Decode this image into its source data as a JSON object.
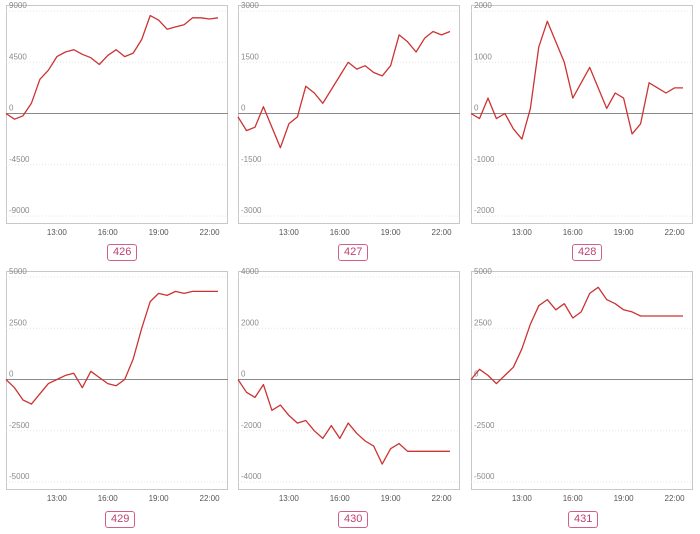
{
  "chart_data": [
    {
      "type": "line",
      "label": "426",
      "x": [
        "10:00",
        "10:30",
        "11:00",
        "11:30",
        "12:00",
        "12:30",
        "13:00",
        "13:30",
        "14:00",
        "14:30",
        "15:00",
        "15:30",
        "16:00",
        "16:30",
        "17:00",
        "17:30",
        "18:00",
        "18:30",
        "19:00",
        "19:30",
        "20:00",
        "20:30",
        "21:00",
        "21:30",
        "22:00",
        "22:30"
      ],
      "x_ticks": [
        "13:00",
        "16:00",
        "19:00",
        "22:00"
      ],
      "y_ticks": [
        "9000",
        "4500",
        "0",
        "-4500",
        "-9000"
      ],
      "ylim": [
        -9000,
        9000
      ],
      "values": [
        0,
        -500,
        -200,
        900,
        3000,
        3800,
        5000,
        5400,
        5600,
        5200,
        4900,
        4300,
        5100,
        5600,
        5000,
        5300,
        6500,
        8600,
        8200,
        7400,
        7600,
        7800,
        8400,
        8400,
        8300,
        8400
      ],
      "color": "#cc3333"
    },
    {
      "type": "line",
      "label": "427",
      "x": [
        "10:00",
        "10:30",
        "11:00",
        "11:30",
        "12:00",
        "12:30",
        "13:00",
        "13:30",
        "14:00",
        "14:30",
        "15:00",
        "15:30",
        "16:00",
        "16:30",
        "17:00",
        "17:30",
        "18:00",
        "18:30",
        "19:00",
        "19:30",
        "20:00",
        "20:30",
        "21:00",
        "21:30",
        "22:00",
        "22:30"
      ],
      "x_ticks": [
        "13:00",
        "16:00",
        "19:00",
        "22:00"
      ],
      "y_ticks": [
        "3000",
        "1500",
        "0",
        "-1500",
        "-3000"
      ],
      "ylim": [
        -3000,
        3000
      ],
      "values": [
        -100,
        -500,
        -400,
        200,
        -400,
        -1000,
        -300,
        -100,
        800,
        600,
        300,
        700,
        1100,
        1500,
        1300,
        1400,
        1200,
        1100,
        1400,
        2300,
        2100,
        1800,
        2200,
        2400,
        2300,
        2400
      ],
      "color": "#cc3333"
    },
    {
      "type": "line",
      "label": "428",
      "x": [
        "10:00",
        "10:30",
        "11:00",
        "11:30",
        "12:00",
        "12:30",
        "13:00",
        "13:30",
        "14:00",
        "14:30",
        "15:00",
        "15:30",
        "16:00",
        "16:30",
        "17:00",
        "17:30",
        "18:00",
        "18:30",
        "19:00",
        "19:30",
        "20:00",
        "20:30",
        "21:00",
        "21:30",
        "22:00",
        "22:30"
      ],
      "x_ticks": [
        "13:00",
        "16:00",
        "19:00",
        "22:00"
      ],
      "y_ticks": [
        "2000",
        "1000",
        "0",
        "-1000",
        "-2000"
      ],
      "ylim": [
        -2000,
        2000
      ],
      "values": [
        0,
        -100,
        300,
        -100,
        0,
        -300,
        -500,
        100,
        1300,
        1800,
        1400,
        1000,
        300,
        600,
        900,
        500,
        100,
        400,
        300,
        -400,
        -200,
        600,
        500,
        400,
        500,
        500
      ],
      "color": "#cc3333"
    },
    {
      "type": "line",
      "label": "429",
      "x": [
        "10:00",
        "10:30",
        "11:00",
        "11:30",
        "12:00",
        "12:30",
        "13:00",
        "13:30",
        "14:00",
        "14:30",
        "15:00",
        "15:30",
        "16:00",
        "16:30",
        "17:00",
        "17:30",
        "18:00",
        "18:30",
        "19:00",
        "19:30",
        "20:00",
        "20:30",
        "21:00",
        "21:30",
        "22:00",
        "22:30"
      ],
      "x_ticks": [
        "13:00",
        "16:00",
        "19:00",
        "22:00"
      ],
      "y_ticks": [
        "5000",
        "2500",
        "0",
        "-2500",
        "-5000"
      ],
      "ylim": [
        -5000,
        5000
      ],
      "values": [
        0,
        -400,
        -1000,
        -1200,
        -700,
        -200,
        0,
        200,
        300,
        -400,
        400,
        100,
        -200,
        -300,
        0,
        1000,
        2500,
        3800,
        4200,
        4100,
        4300,
        4200,
        4300,
        4300,
        4300,
        4300
      ],
      "color": "#cc3333"
    },
    {
      "type": "line",
      "label": "430",
      "x": [
        "10:00",
        "10:30",
        "11:00",
        "11:30",
        "12:00",
        "12:30",
        "13:00",
        "13:30",
        "14:00",
        "14:30",
        "15:00",
        "15:30",
        "16:00",
        "16:30",
        "17:00",
        "17:30",
        "18:00",
        "18:30",
        "19:00",
        "19:30",
        "20:00",
        "20:30",
        "21:00",
        "21:30",
        "22:00",
        "22:30"
      ],
      "x_ticks": [
        "13:00",
        "16:00",
        "19:00",
        "22:00"
      ],
      "y_ticks": [
        "4000",
        "2000",
        "0",
        "-2000",
        "-4000"
      ],
      "ylim": [
        -4000,
        4000
      ],
      "values": [
        0,
        -500,
        -700,
        -200,
        -1200,
        -1000,
        -1400,
        -1700,
        -1600,
        -2000,
        -2300,
        -1800,
        -2300,
        -1700,
        -2100,
        -2400,
        -2600,
        -3300,
        -2700,
        -2500,
        -2800,
        -2800,
        -2800,
        -2800,
        -2800,
        -2800
      ],
      "color": "#cc3333"
    },
    {
      "type": "line",
      "label": "431",
      "x": [
        "10:00",
        "10:30",
        "11:00",
        "11:30",
        "12:00",
        "12:30",
        "13:00",
        "13:30",
        "14:00",
        "14:30",
        "15:00",
        "15:30",
        "16:00",
        "16:30",
        "17:00",
        "17:30",
        "18:00",
        "18:30",
        "19:00",
        "19:30",
        "20:00",
        "20:30",
        "21:00",
        "21:30",
        "22:00",
        "22:30"
      ],
      "x_ticks": [
        "13:00",
        "16:00",
        "19:00",
        "22:00"
      ],
      "y_ticks": [
        "5000",
        "2500",
        "0",
        "-2500",
        "-5000"
      ],
      "ylim": [
        -5000,
        5000
      ],
      "values": [
        0,
        500,
        200,
        -200,
        200,
        600,
        1500,
        2700,
        3600,
        3900,
        3400,
        3700,
        3000,
        3300,
        4200,
        4500,
        3900,
        3700,
        3400,
        3300,
        3100,
        3100,
        3100,
        3100,
        3100,
        3100
      ],
      "color": "#cc3333"
    }
  ]
}
